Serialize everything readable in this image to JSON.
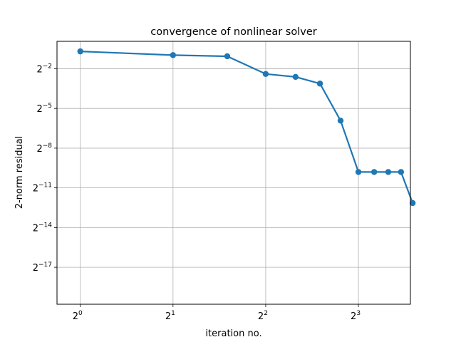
{
  "chart_data": {
    "type": "line",
    "title": "convergence of nonlinear solver",
    "xlabel": "iteration no.",
    "ylabel": "2-norm residual",
    "xscale": "log2",
    "yscale": "log2",
    "grid": true,
    "xlim": [
      0.84,
      11.8
    ],
    "ylim": [
      1.1e-06,
      1.05
    ],
    "xticks": [
      {
        "value": 1,
        "base": "2",
        "exp": "0"
      },
      {
        "value": 2,
        "base": "2",
        "exp": "1"
      },
      {
        "value": 4,
        "base": "2",
        "exp": "2"
      },
      {
        "value": 8,
        "base": "2",
        "exp": "3"
      }
    ],
    "yticks": [
      {
        "value": 0.25,
        "base": "2",
        "exp": "−2"
      },
      {
        "value": 0.03125,
        "base": "2",
        "exp": "−5"
      },
      {
        "value": 0.00390625,
        "base": "2",
        "exp": "−8"
      },
      {
        "value": 0.00048828125,
        "base": "2",
        "exp": "−11"
      },
      {
        "value": 6.103515625e-05,
        "base": "2",
        "exp": "−14"
      },
      {
        "value": 7.62939453125e-06,
        "base": "2",
        "exp": "−17"
      }
    ],
    "series": [
      {
        "color": "#1f77b4",
        "x": [
          1,
          2,
          3,
          4,
          5,
          6,
          7,
          8,
          9,
          10,
          11,
          12
        ],
        "y": [
          0.62,
          0.51,
          0.48,
          0.19,
          0.163,
          0.115,
          0.0165,
          0.00112,
          0.00112,
          0.00112,
          0.00112,
          0.00022
        ]
      }
    ]
  }
}
